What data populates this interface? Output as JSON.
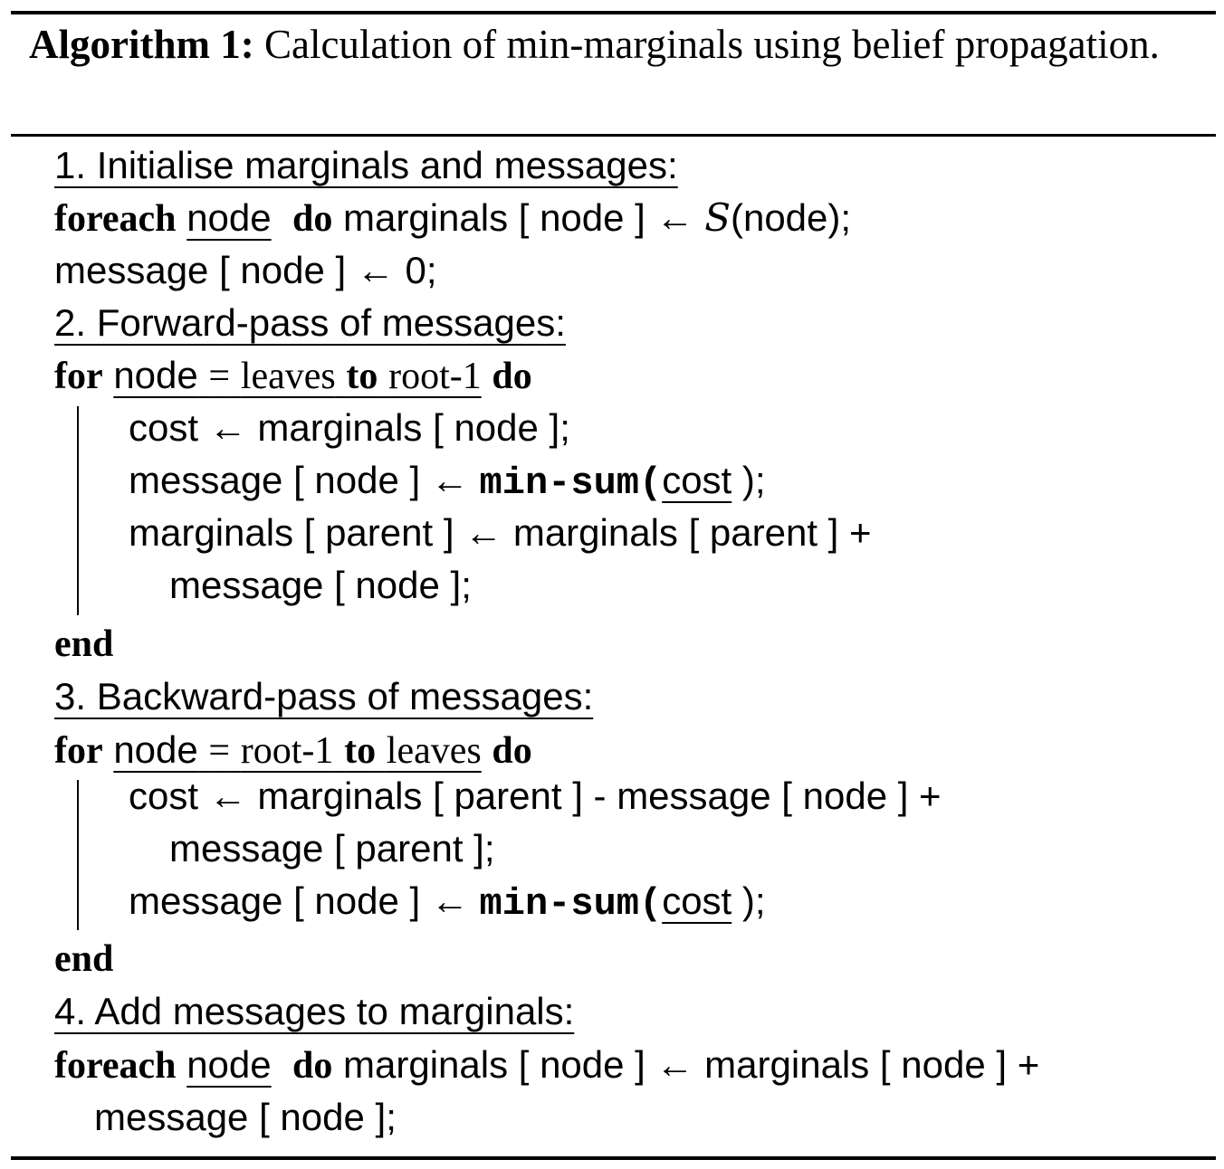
{
  "algorithm": {
    "label": "Algorithm 1:",
    "caption": "Calculation of min-marginals using belief propagation."
  },
  "keywords": {
    "foreach": "foreach",
    "for": "for",
    "do": "do",
    "to": "to",
    "end": "end"
  },
  "steps": {
    "s1": "1. Initialise marginals and messages:",
    "s2": "2. Forward-pass of messages:",
    "s3": "3. Backward-pass of messages:",
    "s4": "4. Add messages to marginals:"
  },
  "text": {
    "node": "node",
    "eq": "=",
    "leaves": "leaves",
    "root1": "root-1",
    "cost": "cost",
    "min_sum": "min-sum(",
    "close_semi": ");",
    "script_s": "S",
    "init_a": "marginals [ node ] ← ",
    "init_b": "(node);",
    "init_msg": "message [ node ] ← 0;",
    "fwd_1": "cost ← marginals [ node ];",
    "msg_assign": "message [ node ] ← ",
    "fwd_3": "marginals [ parent ] ← marginals [ parent ] +",
    "fwd_4": "message [ node ];",
    "bwd_1": "cost ← marginals [ parent ] - message [ node ] +",
    "bwd_2": "message [ parent ];",
    "add_1": "marginals [ node ] ← marginals [ node ] +",
    "add_2": "message [ node ];"
  }
}
